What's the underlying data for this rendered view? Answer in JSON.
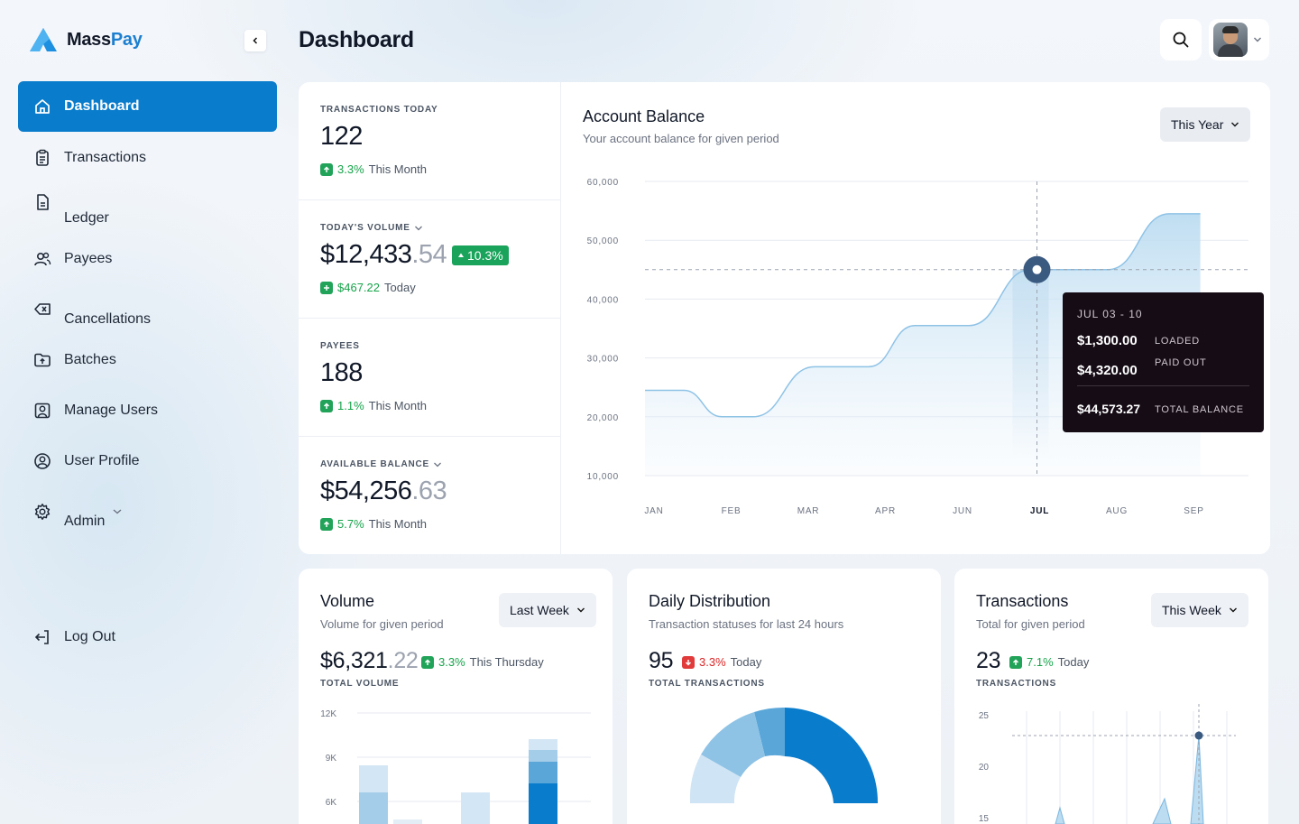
{
  "brand": {
    "name_part1": "Mass",
    "name_part2": "Pay"
  },
  "page": {
    "title": "Dashboard"
  },
  "sidebar": {
    "items": [
      {
        "label": "Dashboard",
        "icon": "home-icon",
        "active": true
      },
      {
        "label": "Transactions",
        "icon": "clipboard-icon"
      },
      {
        "label": "Ledger",
        "icon": "document-icon"
      },
      {
        "label": "Payees",
        "icon": "users-icon"
      },
      {
        "label": "Cancellations",
        "icon": "backspace-icon"
      },
      {
        "label": "Batches",
        "icon": "folder-upload-icon"
      },
      {
        "label": "Manage Users",
        "icon": "user-square-icon"
      },
      {
        "label": "User Profile",
        "icon": "user-circle-icon"
      },
      {
        "label": "Admin",
        "icon": "gear-icon"
      }
    ],
    "logout_label": "Log Out"
  },
  "stats": {
    "transactions_today": {
      "label": "TRANSACTIONS TODAY",
      "value": "122",
      "change": "3.3%",
      "period": "This Month"
    },
    "todays_volume": {
      "label": "TODAY'S VOLUME",
      "value_main": "$12,433",
      "value_dec": ".54",
      "badge": "10.3%",
      "change": "$467.22",
      "period": "Today"
    },
    "payees": {
      "label": "PAYEES",
      "value": "188",
      "change": "1.1%",
      "period": "This Month"
    },
    "available_balance": {
      "label": "AVAILABLE BALANCE",
      "value_main": "$54,256",
      "value_dec": ".63",
      "change": "5.7%",
      "period": "This Month"
    }
  },
  "account_balance": {
    "title": "Account Balance",
    "subtitle": "Your account balance for given period",
    "period": "This Year",
    "tooltip": {
      "range": "JUL 03 - 10",
      "loaded_value": "$1,300.00",
      "loaded_label": "LOADED",
      "paidout_value": "$4,320.00",
      "paidout_label": "PAID OUT",
      "total_value": "$44,573.27",
      "total_label": "TOTAL BALANCE"
    }
  },
  "chart_data": [
    {
      "type": "area",
      "title": "Account Balance",
      "x": [
        "JAN",
        "FEB",
        "MAR",
        "APR",
        "JUN",
        "JUL",
        "AUG",
        "SEP"
      ],
      "yticks": [
        "60,000",
        "50,000",
        "40,000",
        "30,000",
        "20,000",
        "10,000"
      ],
      "ylim": [
        10000,
        60000
      ],
      "highlight": "JUL",
      "color": "#8fc3e6",
      "points": [
        [
          0,
          24500
        ],
        [
          0.5,
          24500
        ],
        [
          1,
          20000
        ],
        [
          1.4,
          20000
        ],
        [
          2.2,
          28500
        ],
        [
          2.9,
          28500
        ],
        [
          3.5,
          35500
        ],
        [
          4.2,
          35500
        ],
        [
          5.0,
          45000
        ],
        [
          6.0,
          45000
        ],
        [
          6.8,
          54500
        ],
        [
          7.2,
          54500
        ]
      ]
    },
    {
      "type": "bar",
      "title": "Volume",
      "yticks": [
        "12K",
        "9K",
        "6K"
      ],
      "ylim": [
        3000,
        12000
      ]
    },
    {
      "type": "pie",
      "title": "Daily Distribution",
      "colors": [
        "#0a7ccc",
        "#cfe4f4",
        "#8fc3e6",
        "#5aa6d8"
      ]
    },
    {
      "type": "line",
      "title": "Transactions",
      "yticks": [
        "25",
        "20",
        "15"
      ],
      "ylim": [
        15,
        25
      ],
      "highlight_value": 25
    }
  ],
  "volume": {
    "title": "Volume",
    "subtitle": "Volume for given period",
    "period": "Last Week",
    "value_main": "$6,321",
    "value_dec": ".22",
    "change": "3.3%",
    "period_text": "This Thursday",
    "caption": "TOTAL VOLUME"
  },
  "distribution": {
    "title": "Daily Distribution",
    "subtitle": "Transaction statuses for last 24 hours",
    "value": "95",
    "change": "3.3%",
    "period_text": "Today",
    "caption": "TOTAL TRANSACTIONS"
  },
  "transactions_card": {
    "title": "Transactions",
    "subtitle": "Total for given period",
    "period": "This Week",
    "value": "23",
    "change": "7.1%",
    "period_text": "Today",
    "caption": "TRANSACTIONS"
  }
}
